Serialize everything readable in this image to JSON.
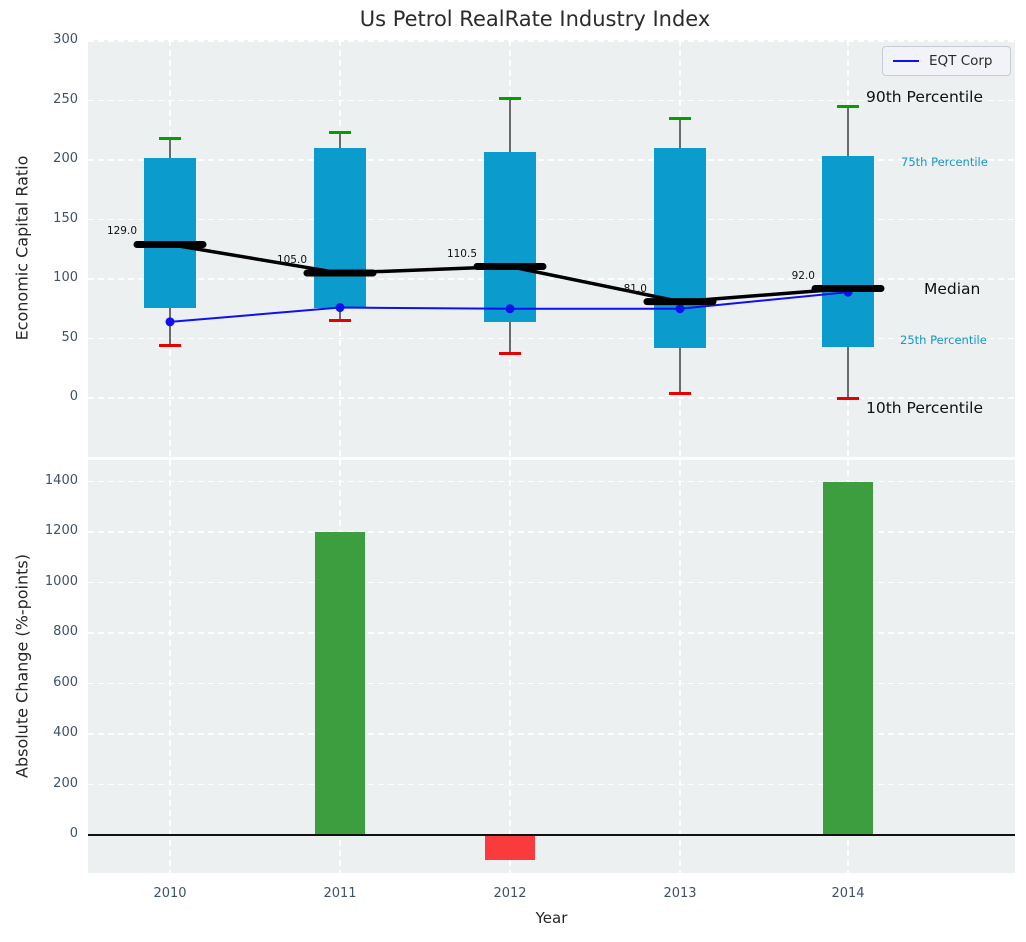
{
  "title": "Us Petrol RealRate Industry Index",
  "legend": {
    "label": "EQT Corp"
  },
  "annotations": {
    "p90": "90th Percentile",
    "p75": "75th Percentile",
    "median": "Median",
    "p25": "25th Percentile",
    "p10": "10th Percentile"
  },
  "colors": {
    "box": "#0b9bcd",
    "cap_high": "#00a000",
    "cap_low": "#e60000",
    "whisker": "#6a6a6a",
    "median_line": "#000000",
    "eqt_line": "#1010ee",
    "bar_positive": "#3c9e3e",
    "bar_negative": "#fa3b3b",
    "plot_bg": "#edf0f1",
    "tick_text": "#3f516a",
    "annotation_blue": "#1496c8"
  },
  "chart_data": [
    {
      "type": "box-percentile-with-line",
      "title": "Us Petrol RealRate Industry Index",
      "ylabel": "Economic Capital Ratio",
      "categories": [
        "2010",
        "2011",
        "2012",
        "2013",
        "2014"
      ],
      "yticks": [
        0,
        50,
        100,
        150,
        200,
        250,
        300
      ],
      "ylim": [
        -50,
        302
      ],
      "grid": true,
      "legend_position": "upper right",
      "series": [
        {
          "name": "90th Percentile",
          "values": [
            218,
            223,
            252,
            235,
            245
          ]
        },
        {
          "name": "75th Percentile",
          "values": [
            202,
            210,
            207,
            210,
            203
          ]
        },
        {
          "name": "Median",
          "values": [
            129.0,
            105.0,
            110.5,
            81.0,
            92.0
          ]
        },
        {
          "name": "25th Percentile",
          "values": [
            76,
            76,
            64,
            42,
            43
          ]
        },
        {
          "name": "10th Percentile",
          "values": [
            44,
            65,
            37,
            4,
            0
          ]
        },
        {
          "name": "EQT Corp",
          "values": [
            64,
            76,
            75,
            75,
            89
          ]
        }
      ],
      "median_labels": [
        "129.0",
        "105.0",
        "110.5",
        "81.0",
        "92.0"
      ]
    },
    {
      "type": "bar",
      "categories": [
        "2010",
        "2011",
        "2012",
        "2013",
        "2014"
      ],
      "values": [
        0,
        1200,
        -100,
        0,
        1400
      ],
      "xlabel": "Year",
      "ylabel": "Absolute Change (%-points)",
      "yticks": [
        0,
        200,
        400,
        600,
        800,
        1000,
        1200,
        1400
      ],
      "ylim": [
        -150,
        1485
      ],
      "grid": true
    }
  ]
}
